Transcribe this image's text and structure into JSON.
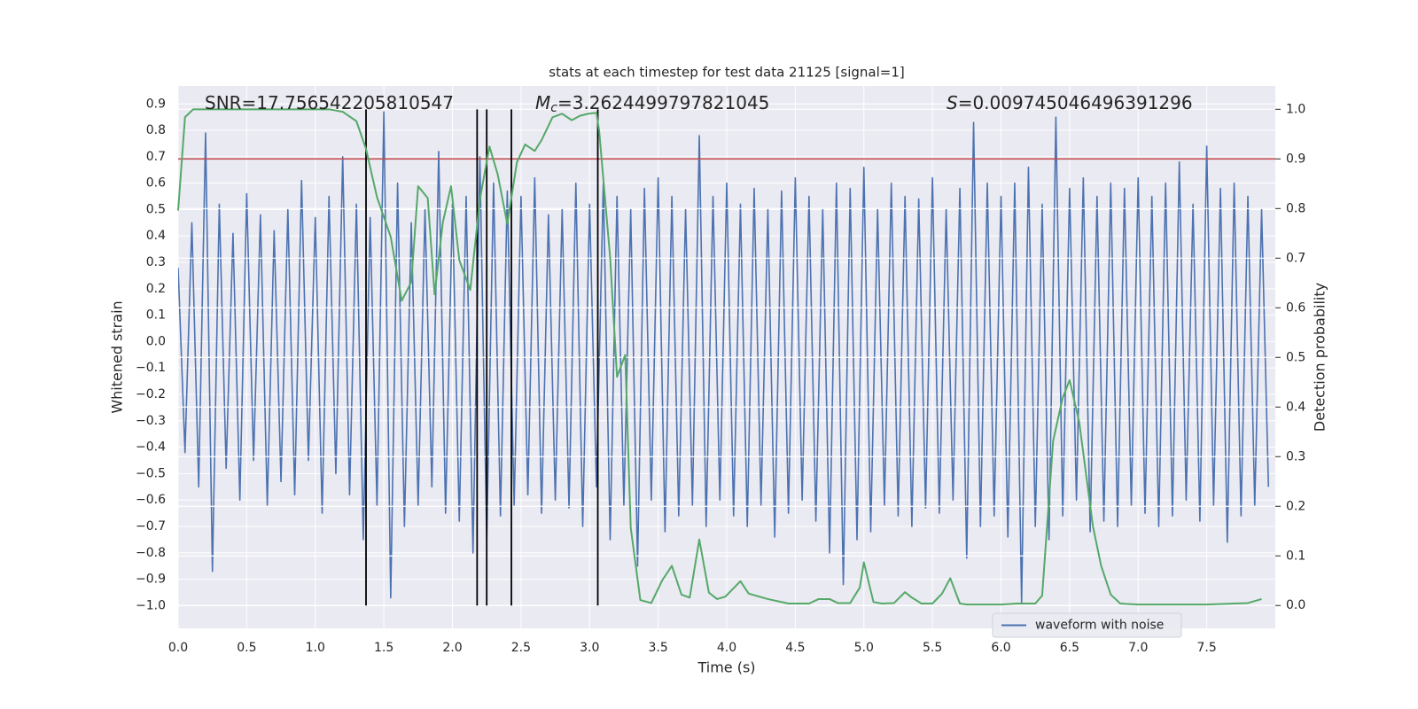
{
  "chart_data": {
    "type": "line",
    "title": "stats at each timestep for test data 21125 [signal=1]",
    "x_label": "Time (s)",
    "y_label": "Whitened strain",
    "y2_label": "Detection probability",
    "annotations": [
      {
        "text": "SNR=17.756542205810547"
      },
      {
        "symbol": "M",
        "subscript": "c",
        "text": "=3.2624499797821045"
      },
      {
        "symbol": "S",
        "text": "=0.009745046496391296"
      }
    ],
    "xlim": [
      0,
      8.0
    ],
    "ylim": [
      -1.086,
      0.968
    ],
    "y2lim": [
      -0.046,
      1.047
    ],
    "xticks": [
      {
        "value": 0,
        "label": "0.0"
      },
      0.5,
      {
        "value": 1,
        "label": "1.0"
      },
      1.5,
      {
        "value": 2,
        "label": "2.0"
      },
      2.5,
      {
        "value": 3,
        "label": "3.0"
      },
      3.5,
      {
        "value": 4,
        "label": "4.0"
      },
      4.5,
      {
        "value": 5,
        "label": "5.0"
      },
      5.5,
      {
        "value": 6,
        "label": "6.0"
      },
      6.5,
      {
        "value": 7,
        "label": "7.0"
      },
      7.5
    ],
    "yticks": [
      0.9,
      0.8,
      0.7,
      0.6,
      0.5,
      0.4,
      0.3,
      0.2,
      0.1,
      {
        "value": 0,
        "label": "0.0"
      },
      {
        "value": -0.1,
        "label": "−0.1"
      },
      {
        "value": -0.2,
        "label": "−0.2"
      },
      {
        "value": -0.3,
        "label": "−0.3"
      },
      {
        "value": -0.4,
        "label": "−0.4"
      },
      {
        "value": -0.5,
        "label": "−0.5"
      },
      {
        "value": -0.6,
        "label": "−0.6"
      },
      {
        "value": -0.7,
        "label": "−0.7"
      },
      {
        "value": -0.8,
        "label": "−0.8"
      },
      {
        "value": -0.9,
        "label": "−0.9"
      },
      {
        "value": -1.0,
        "label": "−1.0"
      }
    ],
    "y2ticks": [
      {
        "value": 0,
        "label": "0.0"
      },
      0.1,
      0.2,
      0.3,
      0.4,
      0.5,
      0.6,
      0.7,
      0.8,
      0.9,
      {
        "value": 1,
        "label": "1.0"
      }
    ],
    "grid": true,
    "legend": "lower right",
    "series": [
      {
        "name": "waveform with noise",
        "color": "#4c72b0",
        "x": [
          0,
          0.05,
          0.1,
          0.15,
          0.2,
          0.25,
          0.3,
          0.35,
          0.4,
          0.45,
          0.5,
          0.55,
          0.6,
          0.65,
          0.7,
          0.75,
          0.8,
          0.85,
          0.9,
          0.95,
          1,
          1.05,
          1.1,
          1.15,
          1.2,
          1.25,
          1.3,
          1.35,
          1.4,
          1.45,
          1.5,
          1.55,
          1.6,
          1.65,
          1.7,
          1.75,
          1.8,
          1.85,
          1.9,
          1.95,
          2,
          2.05,
          2.1,
          2.15,
          2.2,
          2.25,
          2.3,
          2.35,
          2.4,
          2.45,
          2.5,
          2.55,
          2.6,
          2.65,
          2.7,
          2.75,
          2.8,
          2.85,
          2.9,
          2.95,
          3,
          3.05,
          3.1,
          3.15,
          3.2,
          3.25,
          3.3,
          3.35,
          3.4,
          3.45,
          3.5,
          3.55,
          3.6,
          3.65,
          3.7,
          3.75,
          3.8,
          3.85,
          3.9,
          3.95,
          4,
          4.05,
          4.1,
          4.15,
          4.2,
          4.25,
          4.3,
          4.35,
          4.4,
          4.45,
          4.5,
          4.55,
          4.6,
          4.65,
          4.7,
          4.75,
          4.8,
          4.85,
          4.9,
          4.95,
          5,
          5.05,
          5.1,
          5.15,
          5.2,
          5.25,
          5.3,
          5.35,
          5.4,
          5.45,
          5.5,
          5.55,
          5.6,
          5.65,
          5.7,
          5.75,
          5.8,
          5.85,
          5.9,
          5.95,
          6,
          6.05,
          6.1,
          6.15,
          6.2,
          6.25,
          6.3,
          6.35,
          6.4,
          6.45,
          6.5,
          6.55,
          6.6,
          6.65,
          6.7,
          6.75,
          6.8,
          6.85,
          6.9,
          6.95,
          7,
          7.05,
          7.1,
          7.15,
          7.2,
          7.25,
          7.3,
          7.35,
          7.4,
          7.45,
          7.5,
          7.55,
          7.6,
          7.65,
          7.7,
          7.75,
          7.8,
          7.85,
          7.9,
          7.95
        ],
        "values": [
          0.28,
          -0.42,
          0.45,
          -0.55,
          0.79,
          -0.87,
          0.52,
          -0.48,
          0.41,
          -0.6,
          0.56,
          -0.45,
          0.48,
          -0.62,
          0.42,
          -0.53,
          0.5,
          -0.58,
          0.61,
          -0.45,
          0.47,
          -0.65,
          0.55,
          -0.5,
          0.7,
          -0.58,
          0.52,
          -0.75,
          0.47,
          -0.62,
          0.87,
          -0.97,
          0.6,
          -0.7,
          0.45,
          -0.62,
          0.5,
          -0.55,
          0.72,
          -0.65,
          0.52,
          -0.68,
          0.55,
          -0.8,
          0.7,
          -0.75,
          0.6,
          -0.66,
          0.57,
          -0.62,
          0.55,
          -0.58,
          0.62,
          -0.65,
          0.48,
          -0.6,
          0.5,
          -0.63,
          0.6,
          -0.7,
          0.52,
          -0.55,
          0.6,
          -0.75,
          0.55,
          -0.62,
          0.5,
          -0.85,
          0.58,
          -0.6,
          0.62,
          -0.72,
          0.55,
          -0.66,
          0.5,
          -0.62,
          0.78,
          -0.7,
          0.55,
          -0.6,
          0.6,
          -0.66,
          0.52,
          -0.7,
          0.58,
          -0.62,
          0.5,
          -0.74,
          0.57,
          -0.65,
          0.62,
          -0.6,
          0.55,
          -0.68,
          0.5,
          -0.8,
          0.6,
          -0.92,
          0.58,
          -0.75,
          0.66,
          -0.72,
          0.5,
          -0.62,
          0.6,
          -0.66,
          0.55,
          -0.7,
          0.54,
          -0.63,
          0.62,
          -0.65,
          0.5,
          -0.6,
          0.58,
          -0.82,
          0.83,
          -0.7,
          0.6,
          -0.66,
          0.55,
          -0.74,
          0.6,
          -0.99,
          0.66,
          -0.7,
          0.52,
          -0.75,
          0.85,
          -0.66,
          0.58,
          -0.6,
          0.62,
          -0.72,
          0.55,
          -0.68,
          0.6,
          -0.7,
          0.58,
          -0.62,
          0.62,
          -0.65,
          0.55,
          -0.7,
          0.6,
          -0.66,
          0.68,
          -0.6,
          0.52,
          -0.68,
          0.74,
          -0.62,
          0.58,
          -0.76,
          0.6,
          -0.66,
          0.55,
          -0.62,
          0.5,
          -0.55
        ]
      },
      {
        "color": "#55a868",
        "axis": "y2",
        "x": [
          0,
          0.05,
          0.11,
          0.3,
          0.6,
          0.9,
          1.1,
          1.2,
          1.3,
          1.37,
          1.45,
          1.55,
          1.63,
          1.7,
          1.75,
          1.82,
          1.87,
          1.93,
          1.99,
          2.05,
          2.13,
          2.2,
          2.27,
          2.33,
          2.4,
          2.47,
          2.53,
          2.6,
          2.65,
          2.73,
          2.8,
          2.87,
          2.93,
          2.99,
          3.05,
          3.07,
          3.15,
          3.2,
          3.26,
          3.3,
          3.37,
          3.45,
          3.53,
          3.6,
          3.67,
          3.73,
          3.8,
          3.87,
          3.93,
          3.99,
          4.1,
          4.16,
          4.3,
          4.45,
          4.6,
          4.67,
          4.75,
          4.81,
          4.9,
          4.97,
          5.0,
          5.07,
          5.13,
          5.22,
          5.3,
          5.35,
          5.42,
          5.5,
          5.57,
          5.63,
          5.7,
          5.75,
          6.0,
          6.12,
          6.25,
          6.3,
          6.38,
          6.45,
          6.5,
          6.57,
          6.67,
          6.73,
          6.8,
          6.87,
          7.0,
          7.5,
          7.7,
          7.8,
          7.9
        ],
        "values": [
          0.796,
          0.984,
          1.0,
          1.0,
          1.0,
          1.0,
          1.0,
          0.995,
          0.976,
          0.92,
          0.823,
          0.743,
          0.614,
          0.652,
          0.845,
          0.821,
          0.627,
          0.772,
          0.845,
          0.696,
          0.636,
          0.818,
          0.925,
          0.869,
          0.769,
          0.893,
          0.929,
          0.916,
          0.938,
          0.984,
          0.991,
          0.978,
          0.987,
          0.991,
          0.993,
          0.956,
          0.701,
          0.461,
          0.505,
          0.157,
          0.011,
          0.005,
          0.051,
          0.08,
          0.022,
          0.016,
          0.133,
          0.026,
          0.013,
          0.018,
          0.049,
          0.024,
          0.013,
          0.004,
          0.004,
          0.013,
          0.013,
          0.005,
          0.005,
          0.036,
          0.087,
          0.007,
          0.004,
          0.005,
          0.027,
          0.016,
          0.004,
          0.004,
          0.024,
          0.055,
          0.004,
          0.002,
          0.002,
          0.004,
          0.004,
          0.02,
          0.332,
          0.419,
          0.454,
          0.37,
          0.16,
          0.08,
          0.022,
          0.004,
          0.002,
          0.002,
          0.004,
          0.005,
          0.013
        ]
      }
    ],
    "hlines": [
      {
        "value": 0.9,
        "axis": "y2",
        "color": "#c44e52"
      }
    ],
    "vlines": {
      "x": [
        1.37,
        2.18,
        2.25,
        2.43,
        3.06
      ],
      "color": "#000000"
    }
  }
}
